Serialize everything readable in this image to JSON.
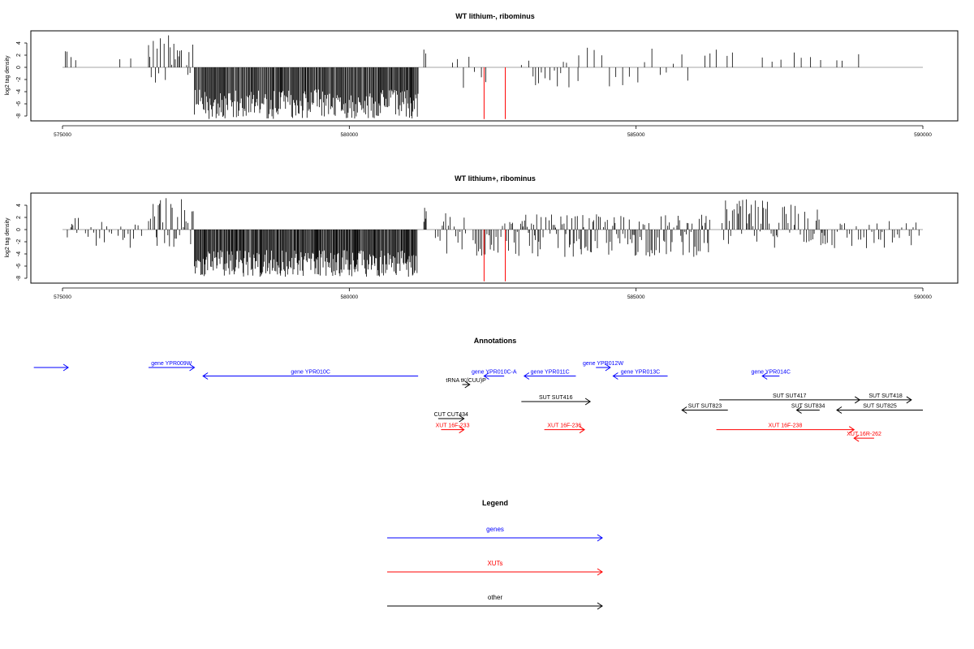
{
  "panels": [
    {
      "title": "WT lithium-, ribominus",
      "ylabel": "log2 tag density"
    },
    {
      "title": "WT lithium+, ribominus",
      "ylabel": "log2 tag density"
    }
  ],
  "annotations_title": "Annotations",
  "legend": {
    "title": "Legend",
    "items": [
      {
        "label": "genes",
        "color": "#0000ff"
      },
      {
        "label": "XUTs",
        "color": "#ff0000"
      },
      {
        "label": "other",
        "color": "#000000"
      }
    ]
  },
  "chart_data": {
    "type": "bar",
    "x_range": [
      575000,
      590000
    ],
    "x_ticks": [
      575000,
      580000,
      585000,
      590000
    ],
    "ylim": [
      -8.5,
      5.8
    ],
    "y_ticks": [
      -8,
      -6,
      -4,
      -2,
      0,
      2,
      4
    ],
    "ylabel": "log2 tag density",
    "grid": false,
    "highlight_color": "#ff0000",
    "panels": [
      {
        "title": "WT lithium-, ribominus",
        "regions": [
          {
            "from": 575050,
            "to": 575100,
            "min": 1,
            "max": 3.5,
            "step": 35
          },
          {
            "from": 575150,
            "to": 575250,
            "min": 1,
            "max": 2,
            "step": 70
          },
          {
            "from": 576000,
            "to": 576300,
            "min": -1.5,
            "max": 2.5,
            "step": 150
          },
          {
            "from": 576500,
            "to": 577300,
            "min": -3.5,
            "max": 5.5,
            "step": 30
          },
          {
            "from": 577300,
            "to": 581200,
            "min": -8.5,
            "max": -1,
            "step": 15
          },
          {
            "from": 581300,
            "to": 581350,
            "min": 1,
            "max": 3,
            "step": 25
          },
          {
            "from": 581800,
            "to": 582400,
            "min": -3.5,
            "max": 3,
            "step": 90
          },
          {
            "from": 583000,
            "to": 584000,
            "min": -3.5,
            "max": 1.5,
            "step": 70
          },
          {
            "from": 584000,
            "to": 586000,
            "min": -3.5,
            "max": 3.5,
            "step": 110
          },
          {
            "from": 586200,
            "to": 586900,
            "min": 0,
            "max": 3,
            "step": 140
          },
          {
            "from": 587200,
            "to": 588300,
            "min": 0,
            "max": 2.5,
            "step": 160
          },
          {
            "from": 588500,
            "to": 589000,
            "min": -1.5,
            "max": 2.5,
            "step": 140
          }
        ],
        "highlights": [
          {
            "x": 582350,
            "y": -8.5
          },
          {
            "x": 582720,
            "y": -8.5
          }
        ]
      },
      {
        "title": "WT lithium+, ribominus",
        "regions": [
          {
            "from": 575050,
            "to": 575300,
            "min": -1.5,
            "max": 2.5,
            "step": 30
          },
          {
            "from": 575400,
            "to": 576400,
            "min": -3,
            "max": 1.5,
            "step": 45
          },
          {
            "from": 576500,
            "to": 577300,
            "min": -3.5,
            "max": 5.5,
            "step": 25
          },
          {
            "from": 577300,
            "to": 581200,
            "min": -7.8,
            "max": -1,
            "step": 14
          },
          {
            "from": 581300,
            "to": 581350,
            "min": 1,
            "max": 4,
            "step": 20
          },
          {
            "from": 581500,
            "to": 582400,
            "min": -5,
            "max": 3,
            "step": 30
          },
          {
            "from": 582400,
            "to": 582900,
            "min": -4,
            "max": 2,
            "step": 30
          },
          {
            "from": 582900,
            "to": 586300,
            "min": -4.5,
            "max": 2.5,
            "step": 22
          },
          {
            "from": 586500,
            "to": 588300,
            "min": -3,
            "max": 5,
            "step": 24
          },
          {
            "from": 588300,
            "to": 590000,
            "min": -3.5,
            "max": 1.5,
            "step": 40
          }
        ],
        "highlights": [
          {
            "x": 582350,
            "y": -8.5
          },
          {
            "x": 582720,
            "y": -8.5
          }
        ]
      }
    ],
    "annotations": [
      {
        "label": "",
        "from": 574500,
        "to": 575100,
        "strand": "+",
        "color": "#0000ff",
        "row": 0
      },
      {
        "label": "gene YPR009W",
        "from": 576500,
        "to": 577300,
        "strand": "+",
        "color": "#0000ff",
        "row": 0
      },
      {
        "label": "gene YPR010C",
        "from": 577450,
        "to": 581200,
        "strand": "-",
        "color": "#0000ff",
        "row": 1
      },
      {
        "label": "gene YPR010C-A",
        "from": 582350,
        "to": 582700,
        "strand": "-",
        "color": "#0000ff",
        "row": 1
      },
      {
        "label": "gene YPR011C",
        "from": 583050,
        "to": 583950,
        "strand": "-",
        "color": "#0000ff",
        "row": 1
      },
      {
        "label": "gene YPR012W",
        "from": 584300,
        "to": 584550,
        "strand": "+",
        "color": "#0000ff",
        "row": 0
      },
      {
        "label": "gene YPR013C",
        "from": 584600,
        "to": 585550,
        "strand": "-",
        "color": "#0000ff",
        "row": 1
      },
      {
        "label": "gene YPR014C",
        "from": 587200,
        "to": 587500,
        "strand": "-",
        "color": "#0000ff",
        "row": 1
      },
      {
        "label": "tRNA tK(CUU)P",
        "from": 581970,
        "to": 582100,
        "strand": "+",
        "color": "#000000",
        "row": 2
      },
      {
        "label": "SUT SUT416",
        "from": 583000,
        "to": 584200,
        "strand": "+",
        "color": "#000000",
        "row": 4
      },
      {
        "label": "SUT SUT417",
        "from": 586450,
        "to": 588900,
        "strand": "+",
        "color": "#000000",
        "row": 3.8
      },
      {
        "label": "SUT SUT418",
        "from": 588900,
        "to": 589800,
        "strand": "+",
        "color": "#000000",
        "row": 3.8
      },
      {
        "label": "SUT SUT823",
        "from": 585800,
        "to": 586600,
        "strand": "-",
        "color": "#000000",
        "row": 5
      },
      {
        "label": "SUT SUT834",
        "from": 587800,
        "to": 588200,
        "strand": "-",
        "color": "#000000",
        "row": 5
      },
      {
        "label": "SUT SUT825",
        "from": 588500,
        "to": 590000,
        "strand": "-",
        "color": "#000000",
        "row": 5
      },
      {
        "label": "CUT CUT434",
        "from": 581550,
        "to": 582000,
        "strand": "+",
        "color": "#000000",
        "row": 6
      },
      {
        "label": "XUT 16F-233",
        "from": 581600,
        "to": 582000,
        "strand": "+",
        "color": "#ff0000",
        "row": 7.3
      },
      {
        "label": "XUT 16F-236",
        "from": 583400,
        "to": 584100,
        "strand": "+",
        "color": "#ff0000",
        "row": 7.3
      },
      {
        "label": "XUT 16F-238",
        "from": 586400,
        "to": 588800,
        "strand": "+",
        "color": "#ff0000",
        "row": 7.3
      },
      {
        "label": "XUT 16R-262",
        "from": 588800,
        "to": 589150,
        "strand": "-",
        "color": "#ff0000",
        "row": 8.3
      }
    ]
  }
}
